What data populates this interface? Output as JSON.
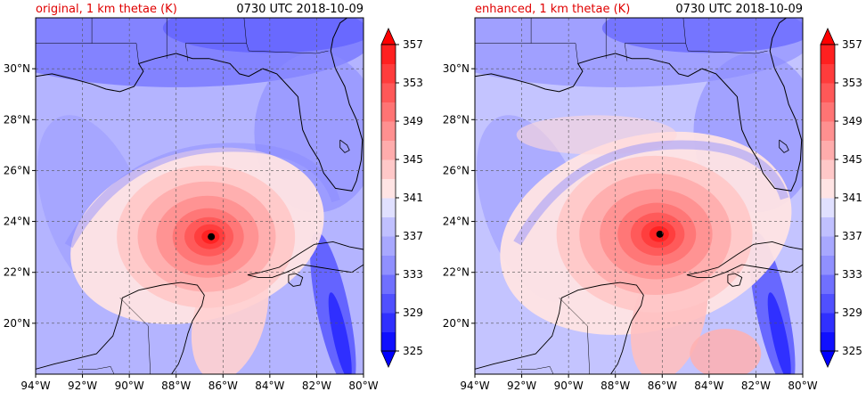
{
  "panels": [
    {
      "title": "original, 1 km thetae (K)",
      "time": "0730 UTC 2018-10-09",
      "storm": {
        "lon": -86.5,
        "lat": 23.4
      }
    },
    {
      "title": "enhanced, 1 km thetae (K)",
      "time": "0730 UTC 2018-10-09",
      "storm": {
        "lon": -86.1,
        "lat": 23.5
      }
    }
  ],
  "map": {
    "lon_range": [
      -94,
      -80
    ],
    "lat_range": [
      18,
      32
    ],
    "lon_ticks": [
      {
        "v": -94,
        "label": "94°W"
      },
      {
        "v": -92,
        "label": "92°W"
      },
      {
        "v": -90,
        "label": "90°W"
      },
      {
        "v": -88,
        "label": "88°W"
      },
      {
        "v": -86,
        "label": "86°W"
      },
      {
        "v": -84,
        "label": "84°W"
      },
      {
        "v": -82,
        "label": "82°W"
      },
      {
        "v": -80,
        "label": "80°W"
      }
    ],
    "lat_ticks": [
      {
        "v": 20,
        "label": "20°N"
      },
      {
        "v": 22,
        "label": "22°N"
      },
      {
        "v": 24,
        "label": "24°N"
      },
      {
        "v": 26,
        "label": "26°N"
      },
      {
        "v": 28,
        "label": "28°N"
      },
      {
        "v": 30,
        "label": "30°N"
      }
    ]
  },
  "colorbar": {
    "tick_labels": [
      "325",
      "329",
      "333",
      "337",
      "341",
      "345",
      "349",
      "353",
      "357"
    ],
    "colors": [
      "#1010ff",
      "#3030ff",
      "#5050ff",
      "#7070ff",
      "#9090ff",
      "#a8a8ff",
      "#c0c0ff",
      "#e0e0ff",
      "#ffe4e4",
      "#ffc8c8",
      "#ffacac",
      "#ff9090",
      "#ff7474",
      "#ff5858",
      "#ff3c3c",
      "#ff2020"
    ],
    "under_color": "#0000ff",
    "over_color": "#ff0000"
  }
}
